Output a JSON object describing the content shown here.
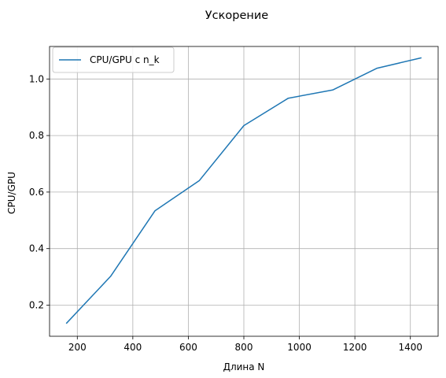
{
  "chart_data": {
    "type": "line",
    "title": "Ускорение",
    "xlabel": "Длина N",
    "ylabel": "CPU/GPU",
    "xlim": [
      100,
      1500
    ],
    "ylim": [
      0.09,
      1.115
    ],
    "xticks": [
      200,
      400,
      600,
      800,
      1000,
      1200,
      1400
    ],
    "yticks": [
      0.2,
      0.4,
      0.6,
      0.8,
      1.0
    ],
    "xtick_labels": [
      "200",
      "400",
      "600",
      "800",
      "1000",
      "1200",
      "1400"
    ],
    "ytick_labels": [
      "0.2",
      "0.4",
      "0.6",
      "0.8",
      "1.0"
    ],
    "grid": true,
    "legend_position": "upper-left",
    "series": [
      {
        "name": "CPU/GPU с n_k",
        "color": "#1f77b4",
        "x": [
          160,
          320,
          480,
          640,
          800,
          960,
          1120,
          1280,
          1440
        ],
        "y": [
          0.135,
          0.302,
          0.534,
          0.641,
          0.835,
          0.932,
          0.961,
          1.038,
          1.075
        ]
      }
    ]
  }
}
